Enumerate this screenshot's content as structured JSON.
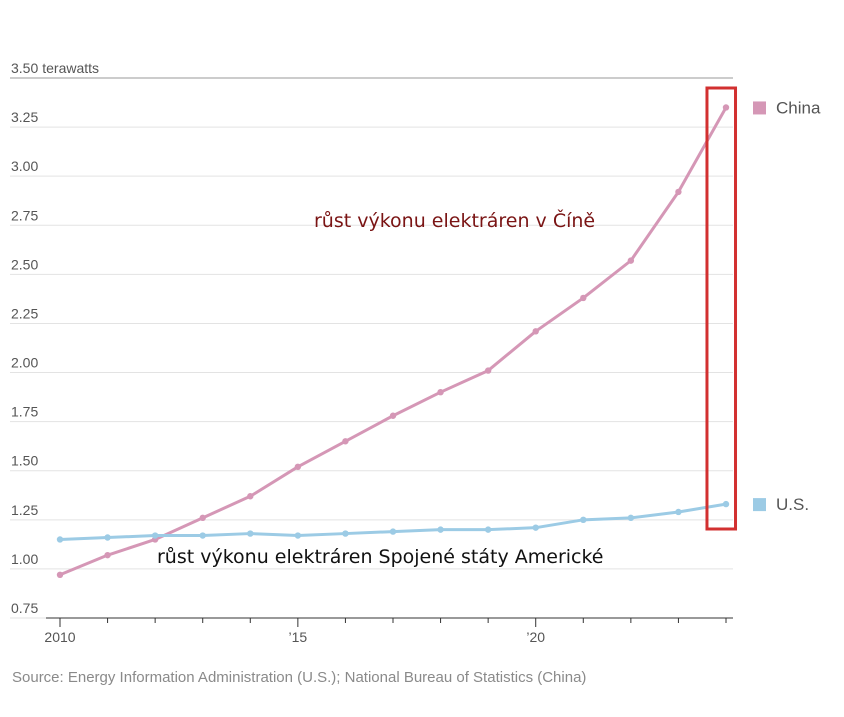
{
  "chart_data": {
    "type": "line",
    "unit_label": "terawatts",
    "x": [
      2010,
      2011,
      2012,
      2013,
      2014,
      2015,
      2016,
      2017,
      2018,
      2019,
      2020,
      2021,
      2022,
      2023,
      2024
    ],
    "x_tick_labels": [
      {
        "x": 2010,
        "label": "2010"
      },
      {
        "x": 2015,
        "label": "’15"
      },
      {
        "x": 2020,
        "label": "’20"
      }
    ],
    "y_ticks": [
      {
        "value": 0.75,
        "label": "0.75"
      },
      {
        "value": 1.0,
        "label": "1.00"
      },
      {
        "value": 1.25,
        "label": "1.25"
      },
      {
        "value": 1.5,
        "label": "1.50"
      },
      {
        "value": 1.75,
        "label": "1.75"
      },
      {
        "value": 2.0,
        "label": "2.00"
      },
      {
        "value": 2.25,
        "label": "2.25"
      },
      {
        "value": 2.5,
        "label": "2.50"
      },
      {
        "value": 2.75,
        "label": "2.75"
      },
      {
        "value": 3.0,
        "label": "3.00"
      },
      {
        "value": 3.25,
        "label": "3.25"
      },
      {
        "value": 3.5,
        "label": "3.50"
      }
    ],
    "ylim": [
      0.75,
      3.5
    ],
    "xlim": [
      2010,
      2024
    ],
    "grid": true,
    "legend_placement": "right",
    "series": [
      {
        "name": "China",
        "color": "#d597b6",
        "values": [
          0.97,
          1.07,
          1.15,
          1.26,
          1.37,
          1.52,
          1.65,
          1.78,
          1.9,
          2.01,
          2.21,
          2.38,
          2.57,
          2.92,
          3.35
        ]
      },
      {
        "name": "U.S.",
        "color": "#9ccbe5",
        "values": [
          1.15,
          1.16,
          1.17,
          1.17,
          1.18,
          1.17,
          1.18,
          1.19,
          1.2,
          1.2,
          1.21,
          1.25,
          1.26,
          1.29,
          1.33
        ]
      }
    ],
    "annotations": [
      {
        "text": "růst výkonu elektráren v Číně",
        "color": "#7a1414"
      },
      {
        "text": "růst výkonu elektráren Spojené státy Americké",
        "color": "#111111"
      }
    ],
    "highlight_box": {
      "x_from": 2023.6,
      "x_to": 2024.2,
      "color": "#d23030"
    }
  },
  "source": "Source: Energy Information Administration (U.S.); National Bureau of Statistics (China)"
}
